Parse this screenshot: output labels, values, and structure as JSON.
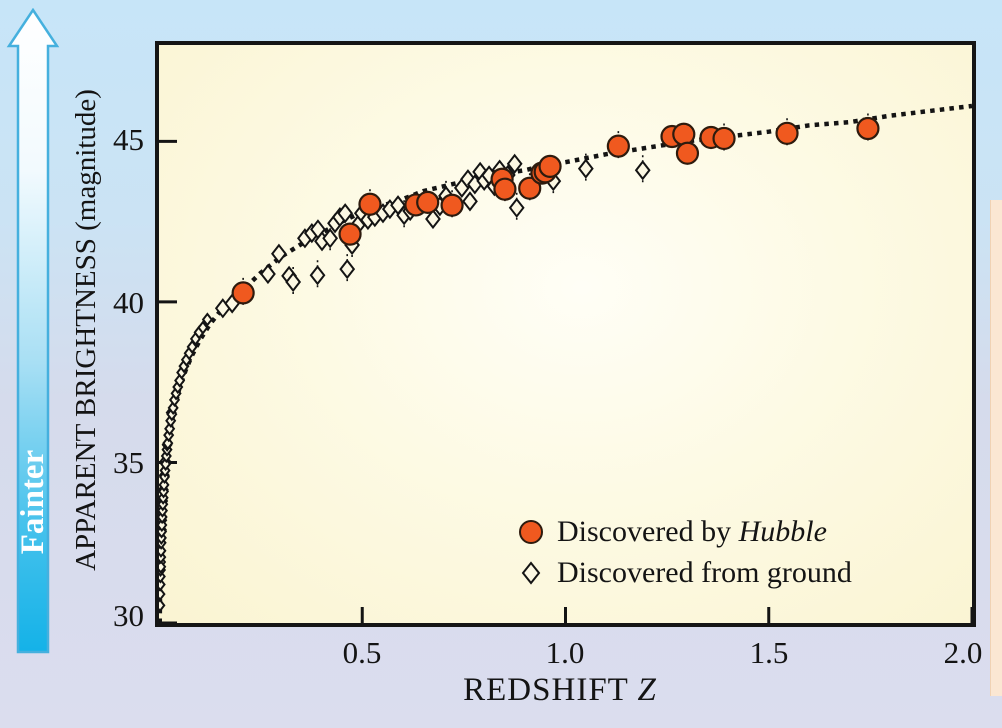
{
  "figure": {
    "fainter_label": "Fainter",
    "y_axis_label": "APPARENT BRIGHTNESS (magnitude)",
    "x_axis_label_prefix": "REDSHIFT ",
    "x_axis_label_z": "Z"
  },
  "legend": {
    "hubble_prefix": "Discovered by ",
    "hubble_italic": "Hubble",
    "ground": "Discovered from ground"
  },
  "colors": {
    "hubble_orange": "#F0591F",
    "marker_stroke": "#2E1B0E",
    "ink": "#141414",
    "diamond_fill": "#FCF8E3",
    "arrow_cyan": "#14B2E8",
    "arrow_border": "#45B0DE",
    "bg_top": "#C7E5F8",
    "bg_bottom": "#DBDDEE",
    "plot_bg_edge": "#FAF4D2",
    "plot_bg_center": "#FFFEF6",
    "page_strip_peach": "#FBE7D3"
  },
  "chart_data": {
    "type": "scatter",
    "title": "",
    "xlabel": "REDSHIFT Z",
    "ylabel": "APPARENT BRIGHTNESS (magnitude)",
    "xlim": [
      0,
      2.0
    ],
    "ylim": [
      30,
      48
    ],
    "grid": false,
    "legend_position": "lower right inside plot",
    "x_ticks": [
      0.5,
      1.0,
      1.5,
      2.0
    ],
    "x_tick_labels": [
      "0.5",
      "1.0",
      "1.5",
      "2.0"
    ],
    "y_ticks": [
      30,
      35,
      40,
      45
    ],
    "y_tick_labels": [
      "30",
      "35",
      "40",
      "45"
    ],
    "best_fit_curve": {
      "style": "dotted",
      "points": [
        [
          0.0018,
          30.0
        ],
        [
          0.002,
          30.2
        ],
        [
          0.0025,
          30.8
        ],
        [
          0.003,
          31.2
        ],
        [
          0.004,
          31.8
        ],
        [
          0.005,
          32.3
        ],
        [
          0.006,
          32.7
        ],
        [
          0.008,
          33.3
        ],
        [
          0.01,
          33.8
        ],
        [
          0.013,
          34.4
        ],
        [
          0.016,
          34.85
        ],
        [
          0.02,
          35.3
        ],
        [
          0.025,
          35.8
        ],
        [
          0.032,
          36.3
        ],
        [
          0.04,
          36.8
        ],
        [
          0.05,
          37.3
        ],
        [
          0.065,
          37.85
        ],
        [
          0.08,
          38.3
        ],
        [
          0.1,
          38.8
        ],
        [
          0.125,
          39.3
        ],
        [
          0.15,
          39.7
        ],
        [
          0.175,
          40.0
        ],
        [
          0.2,
          40.3
        ],
        [
          0.25,
          40.9
        ],
        [
          0.3,
          41.4
        ],
        [
          0.35,
          41.8
        ],
        [
          0.4,
          42.15
        ],
        [
          0.45,
          42.5
        ],
        [
          0.5,
          42.8
        ],
        [
          0.55,
          43.0
        ],
        [
          0.6,
          43.2
        ],
        [
          0.65,
          43.45
        ],
        [
          0.7,
          43.6
        ],
        [
          0.75,
          43.75
        ],
        [
          0.8,
          43.9
        ],
        [
          0.85,
          44.0
        ],
        [
          0.9,
          44.1
        ],
        [
          0.95,
          44.25
        ],
        [
          1.0,
          44.35
        ],
        [
          1.1,
          44.6
        ],
        [
          1.2,
          44.8
        ],
        [
          1.3,
          45.0
        ],
        [
          1.4,
          45.15
        ],
        [
          1.5,
          45.3
        ],
        [
          1.6,
          45.5
        ],
        [
          1.7,
          45.6
        ],
        [
          1.8,
          45.8
        ],
        [
          1.9,
          45.95
        ],
        [
          2.0,
          46.1
        ]
      ]
    },
    "series": [
      {
        "name": "Discovered by Hubble",
        "marker": "circle",
        "points": [
          [
            0.207,
            40.28,
            1
          ],
          [
            0.47,
            42.11,
            0
          ],
          [
            0.519,
            43.04,
            1
          ],
          [
            0.632,
            43.02,
            0
          ],
          [
            0.661,
            43.1,
            0
          ],
          [
            0.721,
            43.01,
            1
          ],
          [
            0.844,
            43.82,
            0
          ],
          [
            0.851,
            43.51,
            1
          ],
          [
            0.912,
            43.54,
            1
          ],
          [
            0.942,
            44.01,
            0
          ],
          [
            0.95,
            44.05,
            0
          ],
          [
            0.962,
            44.22,
            0
          ],
          [
            1.13,
            44.85,
            1
          ],
          [
            1.262,
            45.15,
            0
          ],
          [
            1.291,
            45.22,
            0
          ],
          [
            1.3,
            44.63,
            0
          ],
          [
            1.358,
            45.12,
            0
          ],
          [
            1.39,
            45.09,
            1
          ],
          [
            1.545,
            45.25,
            1
          ],
          [
            1.744,
            45.4,
            1
          ]
        ]
      },
      {
        "name": "Discovered from ground",
        "marker": "diamond",
        "points": [
          [
            0.0023,
            30.55,
            0
          ],
          [
            0.0026,
            30.9,
            0
          ],
          [
            0.003,
            31.2,
            0
          ],
          [
            0.0033,
            31.45,
            0
          ],
          [
            0.0036,
            31.65,
            0
          ],
          [
            0.004,
            31.9,
            0
          ],
          [
            0.0043,
            31.75,
            0
          ],
          [
            0.0044,
            32.05,
            0
          ],
          [
            0.0048,
            32.25,
            0
          ],
          [
            0.0053,
            32.5,
            0
          ],
          [
            0.0058,
            32.65,
            0
          ],
          [
            0.006,
            32.9,
            0
          ],
          [
            0.0064,
            32.85,
            0
          ],
          [
            0.0068,
            33.2,
            0
          ],
          [
            0.007,
            33.05,
            0
          ],
          [
            0.0077,
            33.3,
            0
          ],
          [
            0.0085,
            33.5,
            0
          ],
          [
            0.009,
            33.8,
            0
          ],
          [
            0.0093,
            33.7,
            0
          ],
          [
            0.0102,
            33.9,
            0
          ],
          [
            0.0105,
            34.15,
            0
          ],
          [
            0.0112,
            34.1,
            0
          ],
          [
            0.0123,
            34.3,
            0
          ],
          [
            0.013,
            34.6,
            0
          ],
          [
            0.0135,
            34.55,
            0
          ],
          [
            0.0149,
            34.75,
            0
          ],
          [
            0.0155,
            35.05,
            0
          ],
          [
            0.0163,
            34.95,
            0
          ],
          [
            0.018,
            35.2,
            0
          ],
          [
            0.0197,
            35.4,
            0
          ],
          [
            0.02,
            35.55,
            0
          ],
          [
            0.0217,
            35.6,
            0
          ],
          [
            0.0238,
            35.85,
            0
          ],
          [
            0.0262,
            36.05,
            0
          ],
          [
            0.0288,
            36.3,
            0
          ],
          [
            0.03,
            36.55,
            0
          ],
          [
            0.0316,
            36.5,
            0
          ],
          [
            0.0348,
            36.7,
            0
          ],
          [
            0.0382,
            36.95,
            0
          ],
          [
            0.042,
            37.15,
            0
          ],
          [
            0.0462,
            37.35,
            0
          ],
          [
            0.0508,
            37.55,
            0
          ],
          [
            0.0558,
            37.8,
            0
          ],
          [
            0.0614,
            38.0,
            0
          ],
          [
            0.0675,
            38.2,
            0
          ],
          [
            0.0742,
            38.4,
            0
          ],
          [
            0.0816,
            38.6,
            0
          ],
          [
            0.0897,
            38.85,
            0
          ],
          [
            0.0986,
            39.05,
            0
          ],
          [
            0.108,
            39.2,
            0
          ],
          [
            0.119,
            39.45,
            0
          ],
          [
            0.157,
            39.8,
            0
          ],
          [
            0.18,
            39.95,
            0
          ],
          [
            0.268,
            40.87,
            0
          ],
          [
            0.295,
            41.5,
            0
          ],
          [
            0.32,
            40.81,
            0
          ],
          [
            0.33,
            40.62,
            1
          ],
          [
            0.39,
            40.83,
            1
          ],
          [
            0.463,
            41.02,
            1
          ],
          [
            0.359,
            41.98,
            0
          ],
          [
            0.376,
            42.14,
            0
          ],
          [
            0.391,
            42.26,
            0
          ],
          [
            0.401,
            41.89,
            0
          ],
          [
            0.421,
            41.98,
            1
          ],
          [
            0.433,
            42.45,
            0
          ],
          [
            0.445,
            42.64,
            0
          ],
          [
            0.458,
            42.76,
            0
          ],
          [
            0.475,
            41.77,
            1
          ],
          [
            0.489,
            42.39,
            0
          ],
          [
            0.499,
            42.76,
            0
          ],
          [
            0.514,
            42.55,
            0
          ],
          [
            0.531,
            42.64,
            0
          ],
          [
            0.551,
            42.76,
            0
          ],
          [
            0.568,
            42.89,
            0
          ],
          [
            0.588,
            43.01,
            0
          ],
          [
            0.603,
            42.7,
            1
          ],
          [
            0.618,
            42.83,
            0
          ],
          [
            0.674,
            42.58,
            0
          ],
          [
            0.691,
            42.98,
            0
          ],
          [
            0.706,
            43.3,
            1
          ],
          [
            0.745,
            43.55,
            0
          ],
          [
            0.76,
            43.82,
            0
          ],
          [
            0.765,
            43.13,
            0
          ],
          [
            0.777,
            43.66,
            0
          ],
          [
            0.79,
            44.05,
            0
          ],
          [
            0.8,
            43.77,
            0
          ],
          [
            0.812,
            43.94,
            0
          ],
          [
            0.825,
            43.6,
            0
          ],
          [
            0.838,
            44.12,
            0
          ],
          [
            0.858,
            43.95,
            0
          ],
          [
            0.875,
            44.3,
            0
          ],
          [
            0.88,
            42.93,
            1
          ],
          [
            0.97,
            43.76,
            1
          ],
          [
            1.05,
            44.15,
            1
          ],
          [
            1.19,
            44.1,
            1
          ]
        ]
      }
    ]
  }
}
